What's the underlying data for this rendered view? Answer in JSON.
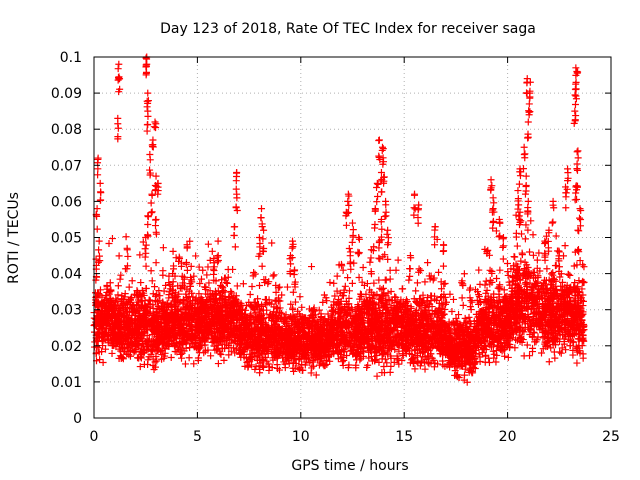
{
  "chart_data": {
    "type": "scatter",
    "title": "Day 123 of 2018, Rate Of TEC Index for receiver saga",
    "xlabel": "GPS time / hours",
    "ylabel": "ROTI / TECUs",
    "xlim": [
      0,
      25
    ],
    "ylim": [
      0,
      0.1
    ],
    "x_ticks": [
      "0",
      "5",
      "10",
      "15",
      "20",
      "25"
    ],
    "y_ticks": [
      "0",
      "0.01",
      "0.02",
      "0.03",
      "0.04",
      "0.05",
      "0.06",
      "0.07",
      "0.08",
      "0.09",
      "0.1"
    ],
    "grid": true,
    "marker": "plus",
    "color": "#ff0000",
    "clusters": [
      {
        "x": [
          0.0,
          1.0
        ],
        "y_mid": 0.027,
        "spread": 0.008,
        "extra": [
          [
            0.2,
            0.072
          ],
          [
            0.3,
            0.065
          ],
          [
            0.15,
            0.058
          ],
          [
            0.25,
            0.049
          ],
          [
            0.1,
            0.044
          ]
        ]
      },
      {
        "x": [
          1.0,
          2.0
        ],
        "y_mid": 0.025,
        "spread": 0.008,
        "extra": [
          [
            1.2,
            0.098
          ],
          [
            1.2,
            0.094
          ],
          [
            1.15,
            0.083
          ],
          [
            1.6,
            0.047
          ]
        ]
      },
      {
        "x": [
          2.0,
          3.5
        ],
        "y_mid": 0.025,
        "spread": 0.009,
        "extra": [
          [
            2.55,
            0.1
          ],
          [
            2.55,
            0.098
          ],
          [
            2.6,
            0.09
          ],
          [
            2.6,
            0.085
          ],
          [
            2.95,
            0.082
          ],
          [
            2.85,
            0.077
          ],
          [
            2.7,
            0.073
          ],
          [
            3.0,
            0.067
          ],
          [
            3.1,
            0.065
          ],
          [
            2.8,
            0.062
          ],
          [
            2.6,
            0.056
          ],
          [
            3.0,
            0.055
          ],
          [
            2.5,
            0.05
          ]
        ]
      },
      {
        "x": [
          3.5,
          5.5
        ],
        "y_mid": 0.026,
        "spread": 0.008,
        "extra": [
          [
            4.5,
            0.048
          ],
          [
            4.7,
            0.042
          ],
          [
            3.8,
            0.04
          ]
        ]
      },
      {
        "x": [
          5.5,
          7.0
        ],
        "y_mid": 0.027,
        "spread": 0.008,
        "extra": [
          [
            5.8,
            0.043
          ],
          [
            6.0,
            0.049
          ],
          [
            6.9,
            0.068
          ],
          [
            6.9,
            0.062
          ],
          [
            6.8,
            0.053
          ]
        ]
      },
      {
        "x": [
          7.0,
          9.0
        ],
        "y_mid": 0.023,
        "spread": 0.008,
        "extra": [
          [
            8.1,
            0.058
          ],
          [
            8.2,
            0.052
          ],
          [
            8.0,
            0.05
          ]
        ]
      },
      {
        "x": [
          9.0,
          11.5
        ],
        "y_mid": 0.022,
        "spread": 0.007,
        "extra": [
          [
            9.6,
            0.049
          ],
          [
            9.5,
            0.045
          ],
          [
            9.7,
            0.041
          ]
        ]
      },
      {
        "x": [
          11.5,
          13.0
        ],
        "y_mid": 0.024,
        "spread": 0.008,
        "extra": [
          [
            12.3,
            0.062
          ],
          [
            12.2,
            0.057
          ],
          [
            12.5,
            0.054
          ],
          [
            12.8,
            0.05
          ],
          [
            12.4,
            0.046
          ]
        ]
      },
      {
        "x": [
          13.0,
          15.0
        ],
        "y_mid": 0.025,
        "spread": 0.009,
        "extra": [
          [
            13.8,
            0.077
          ],
          [
            13.95,
            0.075
          ],
          [
            14.0,
            0.071
          ],
          [
            13.9,
            0.068
          ],
          [
            13.7,
            0.065
          ],
          [
            14.1,
            0.06
          ],
          [
            13.6,
            0.058
          ],
          [
            13.9,
            0.055
          ],
          [
            14.2,
            0.052
          ],
          [
            13.8,
            0.049
          ]
        ]
      },
      {
        "x": [
          15.0,
          17.0
        ],
        "y_mid": 0.024,
        "spread": 0.008,
        "extra": [
          [
            15.5,
            0.062
          ],
          [
            15.7,
            0.059
          ],
          [
            16.5,
            0.053
          ],
          [
            16.9,
            0.048
          ],
          [
            15.3,
            0.045
          ]
        ]
      },
      {
        "x": [
          17.0,
          18.5
        ],
        "y_mid": 0.02,
        "spread": 0.007,
        "extra": [
          [
            17.8,
            0.038
          ],
          [
            18.2,
            0.036
          ]
        ]
      },
      {
        "x": [
          18.5,
          20.2
        ],
        "y_mid": 0.026,
        "spread": 0.009,
        "extra": [
          [
            19.2,
            0.066
          ],
          [
            19.3,
            0.061
          ],
          [
            19.3,
            0.058
          ],
          [
            19.6,
            0.055
          ],
          [
            19.8,
            0.05
          ]
        ]
      },
      {
        "x": [
          20.2,
          21.5
        ],
        "y_mid": 0.031,
        "spread": 0.01,
        "extra": [
          [
            20.95,
            0.094
          ],
          [
            21.1,
            0.093
          ],
          [
            21.05,
            0.087
          ],
          [
            21.0,
            0.082
          ],
          [
            20.8,
            0.075
          ],
          [
            20.6,
            0.069
          ],
          [
            20.9,
            0.067
          ],
          [
            20.5,
            0.063
          ],
          [
            21.0,
            0.06
          ],
          [
            20.6,
            0.057
          ]
        ]
      },
      {
        "x": [
          21.5,
          23.0
        ],
        "y_mid": 0.029,
        "spread": 0.009,
        "extra": [
          [
            22.2,
            0.06
          ],
          [
            22.0,
            0.052
          ],
          [
            21.8,
            0.049
          ],
          [
            22.5,
            0.046
          ],
          [
            22.9,
            0.069
          ],
          [
            22.8,
            0.064
          ]
        ]
      },
      {
        "x": [
          23.0,
          23.7
        ],
        "y_mid": 0.027,
        "spread": 0.009,
        "extra": [
          [
            23.3,
            0.097
          ],
          [
            23.35,
            0.096
          ],
          [
            23.3,
            0.091
          ],
          [
            23.25,
            0.085
          ],
          [
            23.4,
            0.074
          ],
          [
            23.35,
            0.069
          ],
          [
            23.3,
            0.064
          ],
          [
            23.5,
            0.058
          ],
          [
            23.4,
            0.052
          ]
        ]
      }
    ]
  }
}
